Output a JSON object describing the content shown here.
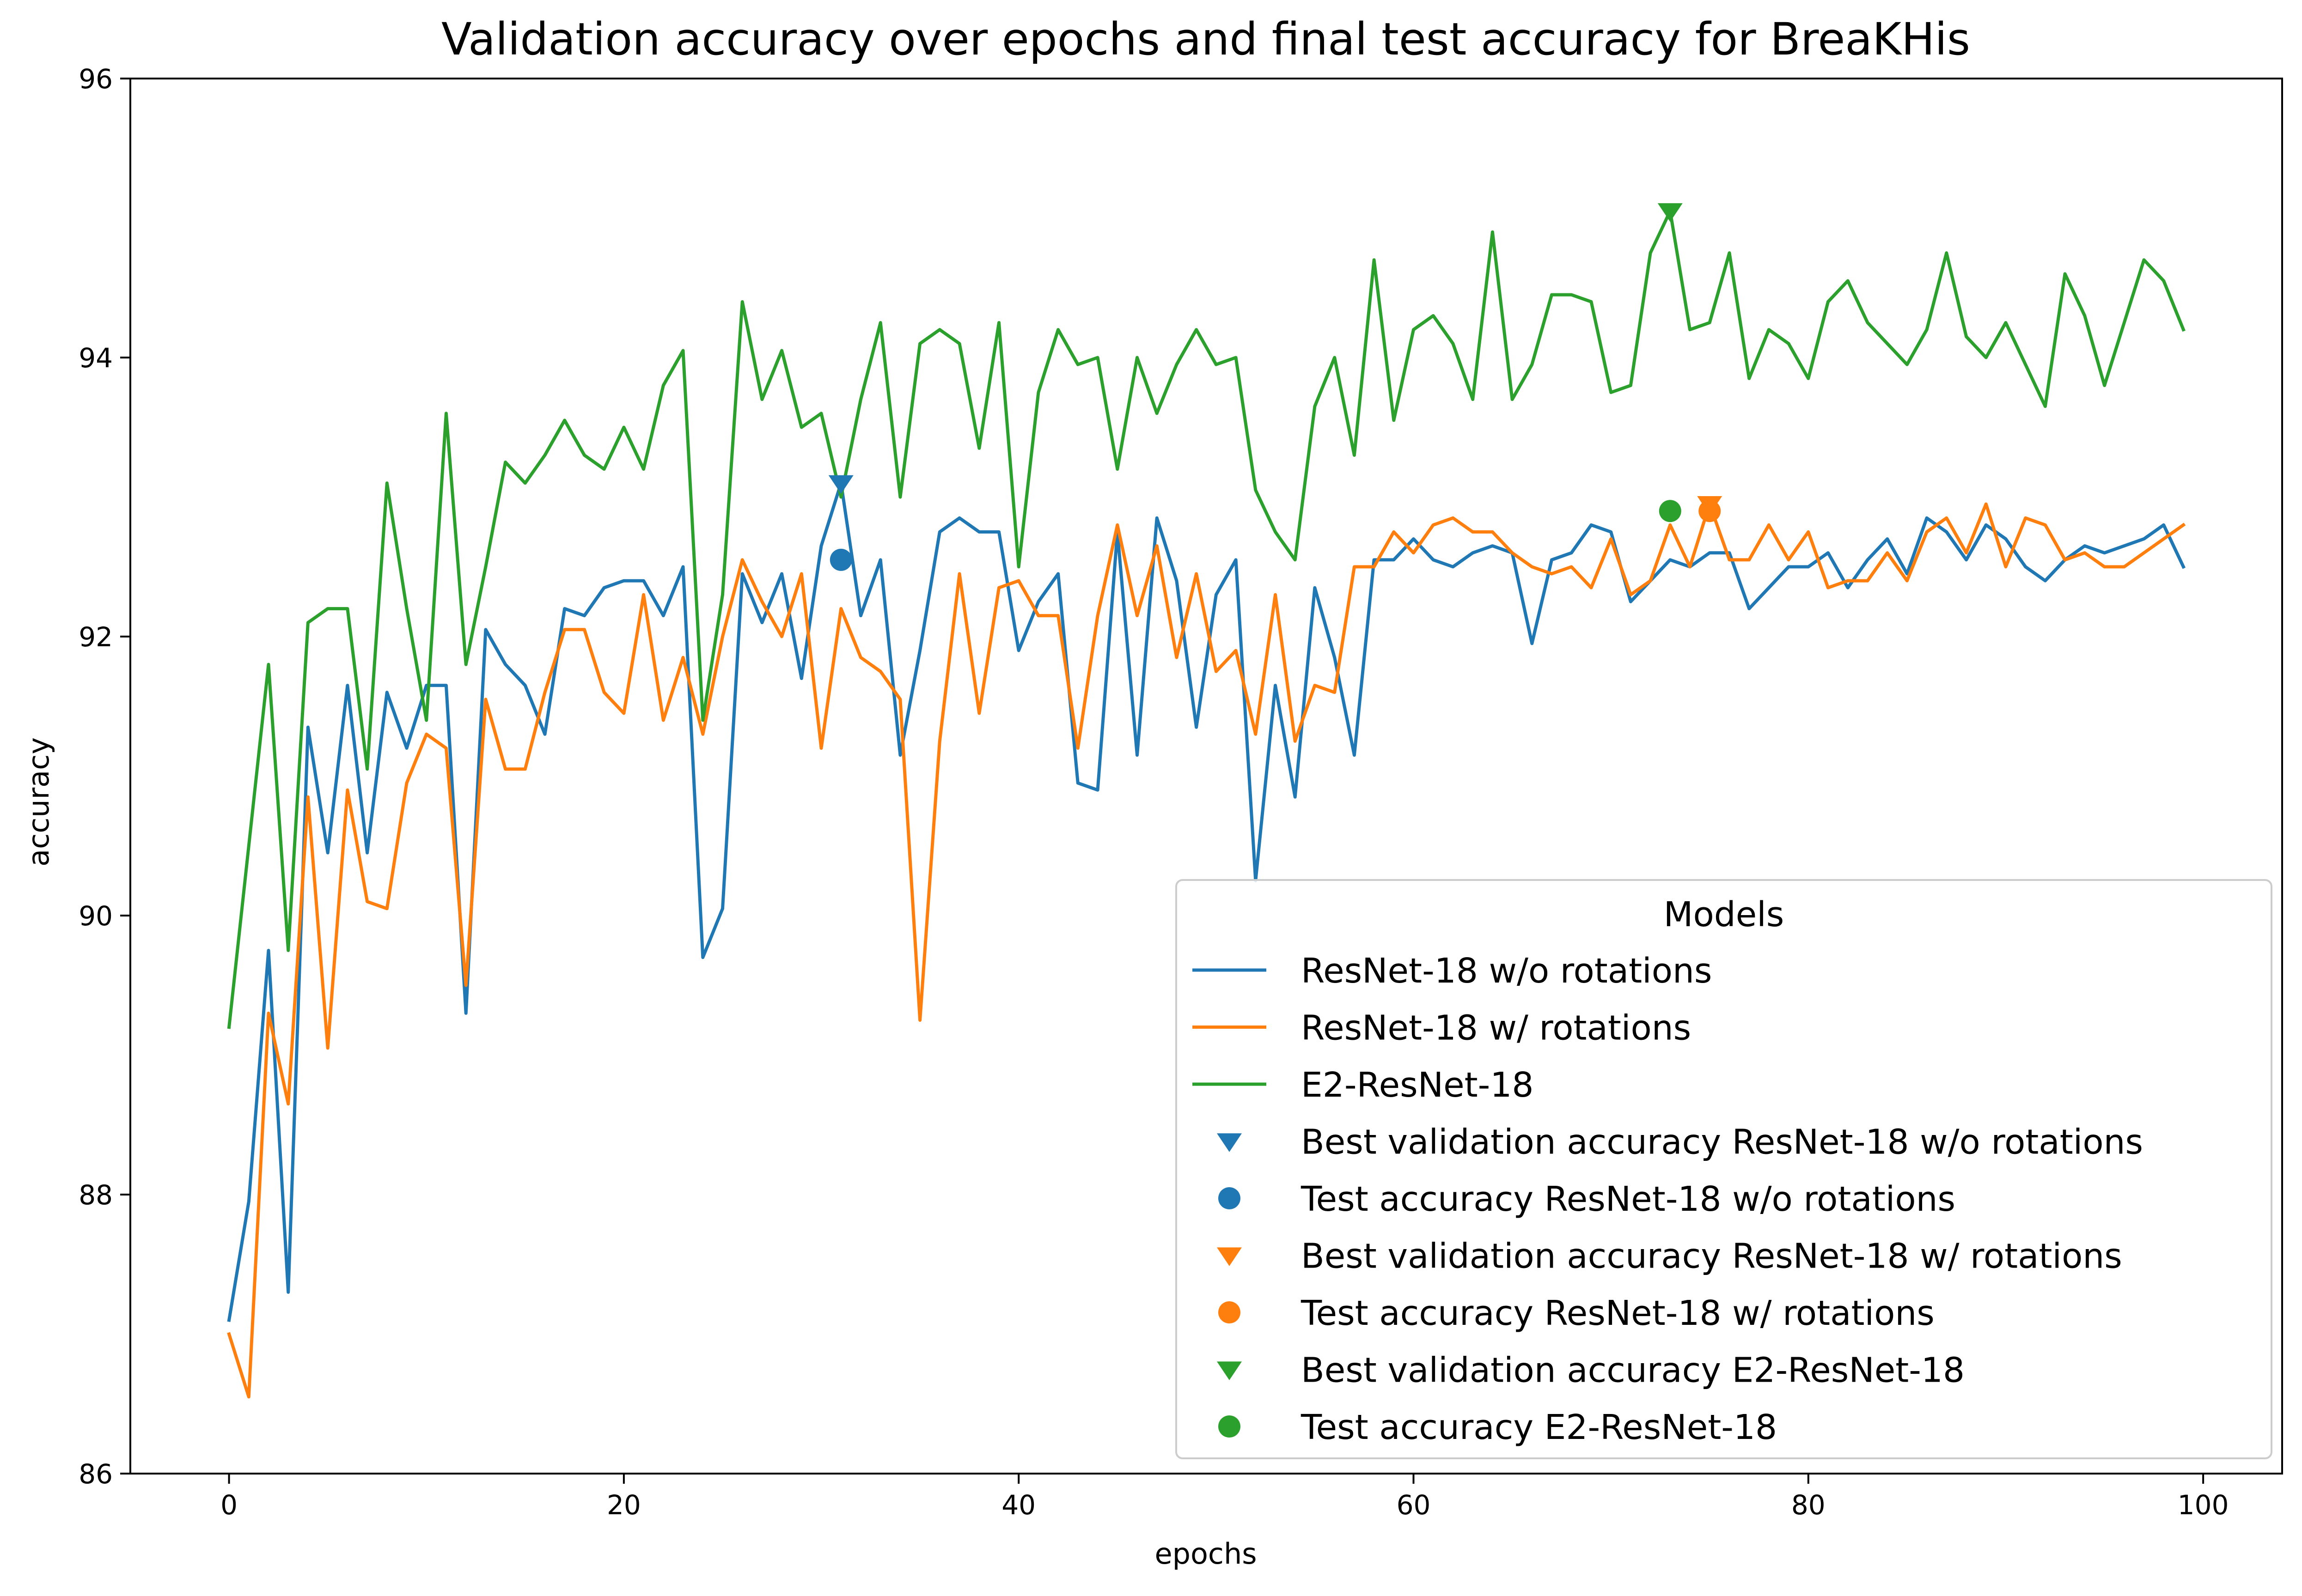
{
  "chart_data": {
    "type": "line",
    "title": "Validation accuracy over epochs and final test accuracy for BreaKHis",
    "xlabel": "epochs",
    "ylabel": "accuracy",
    "xlim": [
      -5,
      104
    ],
    "ylim": [
      86,
      96
    ],
    "xticks": [
      0,
      20,
      40,
      60,
      80,
      100
    ],
    "yticks": [
      86,
      88,
      90,
      92,
      94,
      96
    ],
    "grid": false,
    "legend": {
      "title": "Models",
      "placement": "lower right"
    },
    "series": [
      {
        "name": "ResNet-18 w/o rotations",
        "color": "#1f77b4",
        "x": [
          0,
          1,
          2,
          3,
          4,
          5,
          6,
          7,
          8,
          9,
          10,
          11,
          12,
          13,
          14,
          15,
          16,
          17,
          18,
          19,
          20,
          21,
          22,
          23,
          24,
          25,
          26,
          27,
          28,
          29,
          30,
          31,
          32,
          33,
          34,
          35,
          36,
          37,
          38,
          39,
          40,
          41,
          42,
          43,
          44,
          45,
          46,
          47,
          48,
          49,
          50,
          51,
          52,
          53,
          54,
          55,
          56,
          57,
          58,
          59,
          60,
          61,
          62,
          63,
          64,
          65,
          66,
          67,
          68,
          69,
          70,
          71,
          72,
          73,
          74,
          75,
          76,
          77,
          78,
          79,
          80,
          81,
          82,
          83,
          84,
          85,
          86,
          87,
          88,
          89,
          90,
          91,
          92,
          93,
          94,
          95,
          96,
          97,
          98,
          99
        ],
        "y": [
          87.1,
          87.95,
          89.75,
          87.3,
          91.35,
          90.45,
          91.65,
          90.45,
          91.6,
          91.2,
          91.65,
          91.65,
          89.3,
          92.05,
          91.8,
          91.65,
          91.3,
          92.2,
          92.15,
          92.35,
          92.4,
          92.4,
          92.15,
          92.5,
          89.7,
          90.05,
          92.45,
          92.1,
          92.45,
          91.7,
          92.65,
          93.1,
          92.15,
          92.55,
          91.15,
          91.9,
          92.75,
          92.85,
          92.75,
          92.75,
          91.9,
          92.25,
          92.45,
          90.95,
          90.9,
          92.75,
          91.15,
          92.85,
          92.4,
          91.35,
          92.3,
          92.55,
          90.25,
          91.65,
          90.85,
          92.35,
          91.85,
          91.15,
          92.55,
          92.55,
          92.7,
          92.55,
          92.5,
          92.6,
          92.65,
          92.6,
          91.95,
          92.55,
          92.6,
          92.8,
          92.75,
          92.25,
          92.4,
          92.55,
          92.5,
          92.6,
          92.6,
          92.2,
          92.35,
          92.5,
          92.5,
          92.6,
          92.35,
          92.55,
          92.7,
          92.45,
          92.85,
          92.75,
          92.55,
          92.8,
          92.7,
          92.5,
          92.4,
          92.55,
          92.65,
          92.6,
          92.65,
          92.7,
          92.8,
          92.5
        ]
      },
      {
        "name": "ResNet-18 w/ rotations",
        "color": "#ff7f0e",
        "x": [
          0,
          1,
          2,
          3,
          4,
          5,
          6,
          7,
          8,
          9,
          10,
          11,
          12,
          13,
          14,
          15,
          16,
          17,
          18,
          19,
          20,
          21,
          22,
          23,
          24,
          25,
          26,
          27,
          28,
          29,
          30,
          31,
          32,
          33,
          34,
          35,
          36,
          37,
          38,
          39,
          40,
          41,
          42,
          43,
          44,
          45,
          46,
          47,
          48,
          49,
          50,
          51,
          52,
          53,
          54,
          55,
          56,
          57,
          58,
          59,
          60,
          61,
          62,
          63,
          64,
          65,
          66,
          67,
          68,
          69,
          70,
          71,
          72,
          73,
          74,
          75,
          76,
          77,
          78,
          79,
          80,
          81,
          82,
          83,
          84,
          85,
          86,
          87,
          88,
          89,
          90,
          91,
          92,
          93,
          94,
          95,
          96,
          97,
          98,
          99
        ],
        "y": [
          87.0,
          86.55,
          89.3,
          88.65,
          90.85,
          89.05,
          90.9,
          90.1,
          90.05,
          90.95,
          91.3,
          91.2,
          89.5,
          91.55,
          91.05,
          91.05,
          91.6,
          92.05,
          92.05,
          91.6,
          91.45,
          92.3,
          91.4,
          91.85,
          91.3,
          92.0,
          92.55,
          92.25,
          92.0,
          92.45,
          91.2,
          92.2,
          91.85,
          91.75,
          91.55,
          89.25,
          91.25,
          92.45,
          91.45,
          92.35,
          92.4,
          92.15,
          92.15,
          91.2,
          92.15,
          92.8,
          92.15,
          92.65,
          91.85,
          92.45,
          91.75,
          91.9,
          91.3,
          92.3,
          91.25,
          91.65,
          91.6,
          92.5,
          92.5,
          92.75,
          92.6,
          92.8,
          92.85,
          92.75,
          92.75,
          92.6,
          92.5,
          92.45,
          92.5,
          92.35,
          92.7,
          92.3,
          92.4,
          92.8,
          92.5,
          92.95,
          92.55,
          92.55,
          92.8,
          92.55,
          92.75,
          92.35,
          92.4,
          92.4,
          92.6,
          92.4,
          92.75,
          92.85,
          92.6,
          92.95,
          92.5,
          92.85,
          92.8,
          92.55,
          92.6,
          92.5,
          92.5,
          92.6,
          92.7,
          92.8
        ]
      },
      {
        "name": "E2-ResNet-18",
        "color": "#2ca02c",
        "x": [
          0,
          1,
          2,
          3,
          4,
          5,
          6,
          7,
          8,
          9,
          10,
          11,
          12,
          13,
          14,
          15,
          16,
          17,
          18,
          19,
          20,
          21,
          22,
          23,
          24,
          25,
          26,
          27,
          28,
          29,
          30,
          31,
          32,
          33,
          34,
          35,
          36,
          37,
          38,
          39,
          40,
          41,
          42,
          43,
          44,
          45,
          46,
          47,
          48,
          49,
          50,
          51,
          52,
          53,
          54,
          55,
          56,
          57,
          58,
          59,
          60,
          61,
          62,
          63,
          64,
          65,
          66,
          67,
          68,
          69,
          70,
          71,
          72,
          73,
          74,
          75,
          76,
          77,
          78,
          79,
          80,
          81,
          82,
          83,
          84,
          85,
          86,
          87,
          88,
          89,
          90,
          91,
          92,
          93,
          94,
          95,
          96,
          97,
          98,
          99
        ],
        "y": [
          89.2,
          90.5,
          91.8,
          89.75,
          92.1,
          92.2,
          92.2,
          91.05,
          93.1,
          92.2,
          91.4,
          93.6,
          91.8,
          92.5,
          93.25,
          93.1,
          93.3,
          93.55,
          93.3,
          93.2,
          93.5,
          93.2,
          93.8,
          94.05,
          91.4,
          92.3,
          94.4,
          93.7,
          94.05,
          93.5,
          93.6,
          93.0,
          93.7,
          94.25,
          93.0,
          94.1,
          94.2,
          94.1,
          93.35,
          94.25,
          92.5,
          93.75,
          94.2,
          93.95,
          94.0,
          93.2,
          94.0,
          93.6,
          93.95,
          94.2,
          93.95,
          94.0,
          93.05,
          92.75,
          92.55,
          93.65,
          94.0,
          93.3,
          94.7,
          93.55,
          94.2,
          94.3,
          94.1,
          93.7,
          94.9,
          93.7,
          93.95,
          94.45,
          94.45,
          94.4,
          93.75,
          93.8,
          94.75,
          95.05,
          94.2,
          94.25,
          94.75,
          93.85,
          94.2,
          94.1,
          93.85,
          94.4,
          94.55,
          94.25,
          94.1,
          93.95,
          94.2,
          94.75,
          94.15,
          94.0,
          94.25,
          93.95,
          93.65,
          94.6,
          94.3,
          93.8,
          94.25,
          94.7,
          94.55,
          94.2
        ]
      }
    ],
    "markers": [
      {
        "name": "Best validation accuracy ResNet-18 w/o rotations",
        "shape": "triangle-down",
        "color": "#1f77b4",
        "x": 31,
        "y": 93.1
      },
      {
        "name": "Test accuracy ResNet-18 w/o rotations",
        "shape": "circle",
        "color": "#1f77b4",
        "x": 31,
        "y": 92.55
      },
      {
        "name": "Best validation accuracy ResNet-18 w/ rotations",
        "shape": "triangle-down",
        "color": "#ff7f0e",
        "x": 75,
        "y": 92.95
      },
      {
        "name": "Test accuracy ResNet-18 w/ rotations",
        "shape": "circle",
        "color": "#ff7f0e",
        "x": 75,
        "y": 92.9
      },
      {
        "name": "Best validation accuracy E2-ResNet-18",
        "shape": "triangle-down",
        "color": "#2ca02c",
        "x": 73,
        "y": 95.05
      },
      {
        "name": "Test accuracy E2-ResNet-18",
        "shape": "circle",
        "color": "#2ca02c",
        "x": 73,
        "y": 92.9
      }
    ]
  }
}
